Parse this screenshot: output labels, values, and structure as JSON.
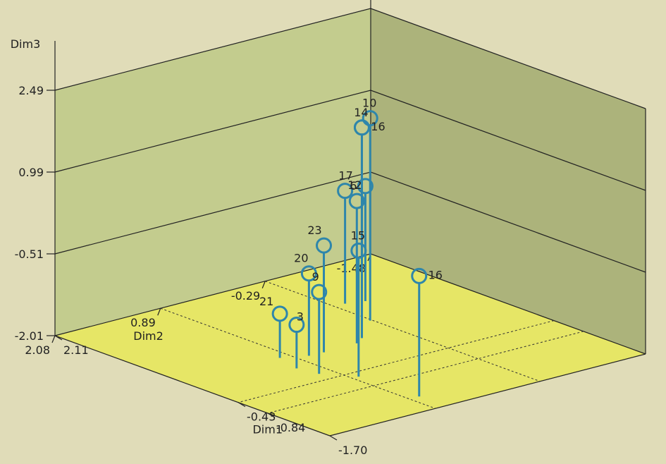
{
  "chart_data": {
    "type": "scatter",
    "subtype": "3d-stem",
    "axes": {
      "dim1": {
        "label": "Dim1",
        "ticks": [
          "2.11",
          "-0.84",
          "-0.43",
          "-1.70"
        ],
        "range": [
          2.11,
          -1.7
        ]
      },
      "dim2": {
        "label": "Dim2",
        "ticks": [
          "-1.48",
          "-0.29",
          "0.89",
          "2.08"
        ],
        "range": [
          -1.48,
          2.08
        ]
      },
      "dim3": {
        "label": "Dim3",
        "ticks": [
          "-2.01",
          "-0.51",
          "0.99",
          "2.49"
        ],
        "range": [
          -2.01,
          2.49
        ]
      }
    },
    "points": [
      {
        "label": "10",
        "dim1": 0.63,
        "dim2": -0.27,
        "dim3": 1.7
      },
      {
        "label": "14",
        "dim1": 0.29,
        "dim2": 0.1,
        "dim3": 1.85
      },
      {
        "label": "16",
        "dim1": 0.29,
        "dim2": 0.1,
        "dim3": 1.85
      },
      {
        "label": "6",
        "dim1": 0.2,
        "dim2": 0.23,
        "dim3": 0.6
      },
      {
        "label": "17",
        "dim1": 1.15,
        "dim2": -0.41,
        "dim3": 0.06
      },
      {
        "label": "12",
        "dim1": 1.09,
        "dim2": -0.59,
        "dim3": 0.1
      },
      {
        "label": "15",
        "dim1": -0.55,
        "dim2": 0.82,
        "dim3": 0.3
      },
      {
        "label": "23",
        "dim1": 0.19,
        "dim2": 0.61,
        "dim3": -0.05
      },
      {
        "label": "20",
        "dim1": 0.2,
        "dim2": 0.77,
        "dim3": -0.5
      },
      {
        "label": "9",
        "dim1": -0.26,
        "dim2": 1.03,
        "dim3": -0.51
      },
      {
        "label": "21",
        "dim1": 0.32,
        "dim2": 1.0,
        "dim3": -1.2
      },
      {
        "label": "3",
        "dim1": -0.01,
        "dim2": 1.08,
        "dim3": -1.21
      },
      {
        "label": "16",
        "dim1": -1.34,
        "dim2": 0.78,
        "dim3": 0.2
      }
    ],
    "colors": {
      "background": "#e0dcb8",
      "back_wall": "#c3cc8e",
      "side_wall": "#acb37b",
      "floor": "#e6e666",
      "marker": "#2e86ab",
      "grid_line": "#222222"
    }
  }
}
